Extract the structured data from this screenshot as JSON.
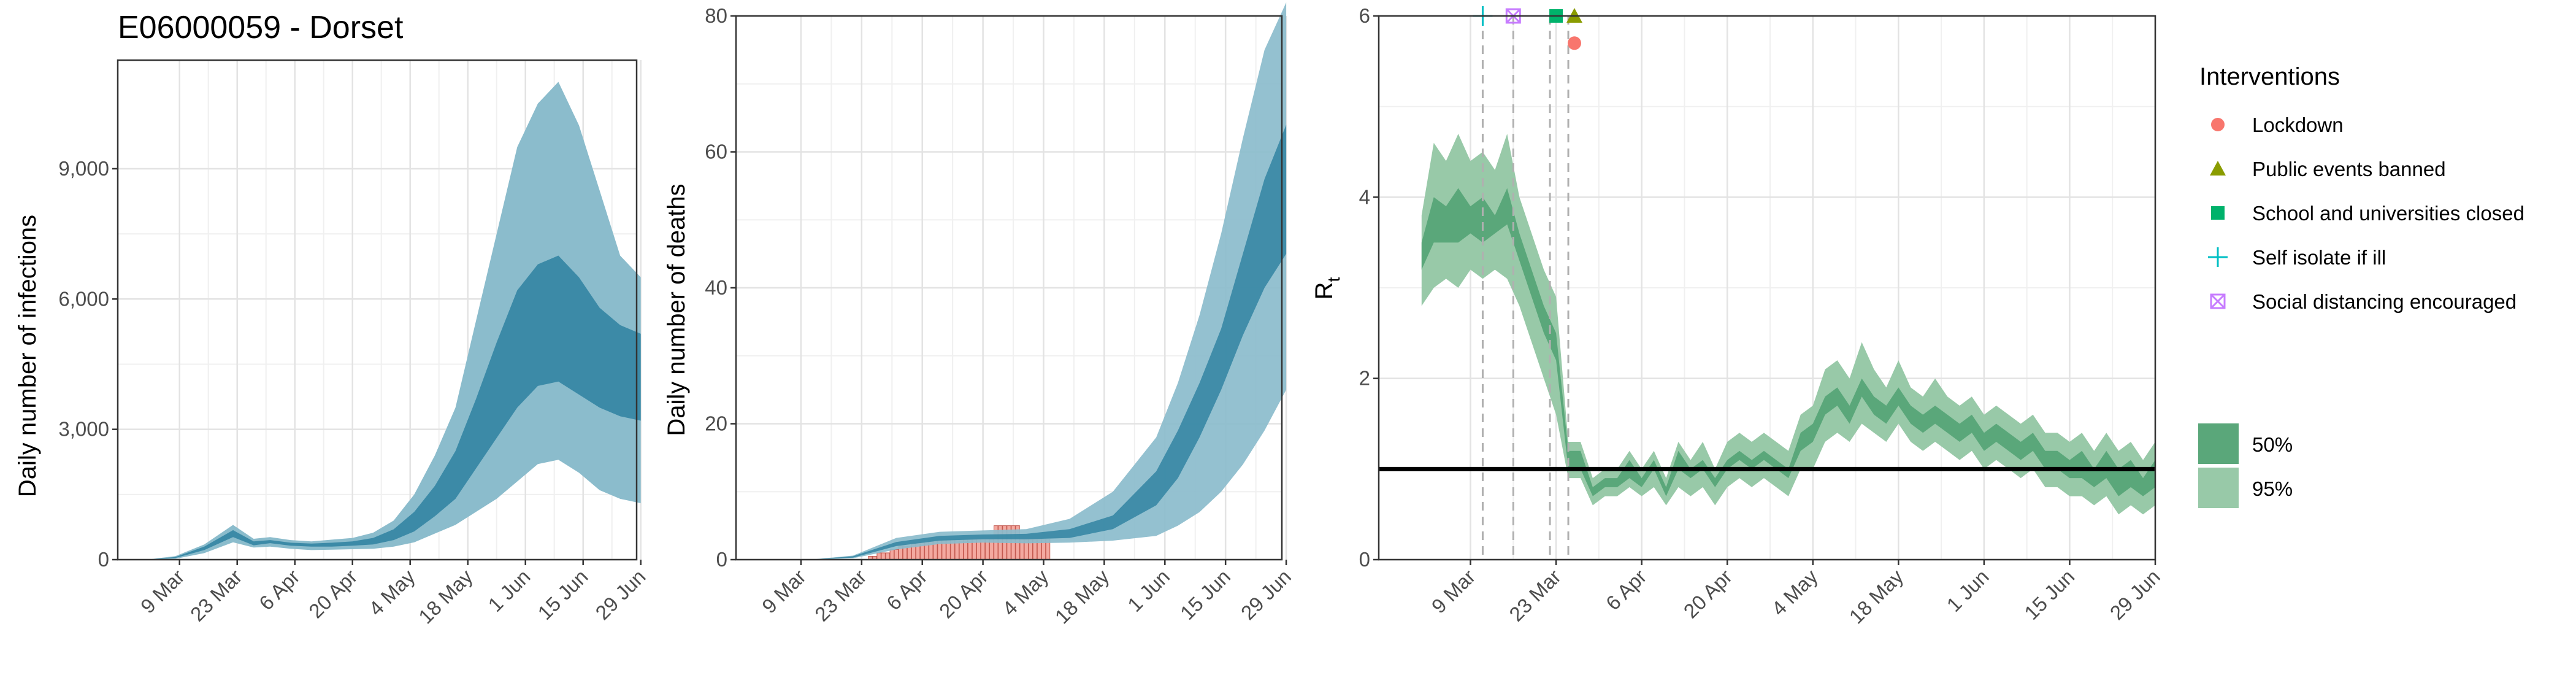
{
  "chart_data": [
    {
      "type": "area",
      "title": "E06000059 - Dorset",
      "ylabel": "Daily number of infections",
      "xlabel": "",
      "ylim": [
        0,
        11500
      ],
      "yticks": [
        0,
        3000,
        6000,
        9000
      ],
      "ytick_labels": [
        "0",
        "3,000",
        "6,000",
        "9,000"
      ],
      "xlim": [
        -7,
        119
      ],
      "xticks": [
        8,
        22,
        36,
        50,
        64,
        78,
        92,
        106,
        120
      ],
      "xtick_labels": [
        "9 Mar",
        "23 Mar",
        "6 Apr",
        "20 Apr",
        "4 May",
        "18 May",
        "1 Jun",
        "15 Jun",
        "29 Jun"
      ],
      "grid": true,
      "colors": {
        "ci95": "#8bbccc",
        "ci50": "#3c8aa7"
      },
      "x": [
        0,
        7,
        14,
        21,
        26,
        30,
        35,
        40,
        45,
        50,
        55,
        60,
        65,
        70,
        75,
        80,
        85,
        90,
        95,
        100,
        105,
        110,
        115,
        120
      ],
      "bands": [
        {
          "name": "",
          "level": 95,
          "lower": [
            0,
            20,
            150,
            400,
            280,
            300,
            250,
            220,
            230,
            240,
            250,
            300,
            400,
            600,
            800,
            1100,
            1400,
            1800,
            2200,
            2300,
            2000,
            1600,
            1400,
            1300
          ],
          "upper": [
            0,
            80,
            350,
            800,
            480,
            520,
            450,
            420,
            460,
            500,
            620,
            900,
            1500,
            2400,
            3500,
            5500,
            7500,
            9500,
            10500,
            11000,
            10000,
            8500,
            7000,
            6500
          ]
        },
        {
          "name": "",
          "level": 50,
          "lower": [
            0,
            40,
            220,
            520,
            330,
            380,
            320,
            300,
            300,
            320,
            350,
            450,
            650,
            1000,
            1400,
            2100,
            2800,
            3500,
            4000,
            4100,
            3800,
            3500,
            3300,
            3200
          ],
          "upper": [
            0,
            60,
            300,
            680,
            420,
            450,
            390,
            370,
            390,
            420,
            500,
            700,
            1100,
            1700,
            2500,
            3700,
            5000,
            6200,
            6800,
            7000,
            6500,
            5800,
            5400,
            5200
          ]
        }
      ]
    },
    {
      "type": "area",
      "ylabel": "Daily number of deaths",
      "xlabel": "",
      "ylim": [
        0,
        80
      ],
      "yticks": [
        0,
        20,
        40,
        60,
        80
      ],
      "ytick_labels": [
        "0",
        "20",
        "40",
        "60",
        "80"
      ],
      "xlim": [
        -7,
        119
      ],
      "xticks": [
        8,
        22,
        36,
        50,
        64,
        78,
        92,
        106,
        120
      ],
      "xtick_labels": [
        "9 Mar",
        "23 Mar",
        "6 Apr",
        "20 Apr",
        "4 May",
        "18 May",
        "1 Jun",
        "15 Jun",
        "29 Jun"
      ],
      "grid": true,
      "colors": {
        "ci95": "#8bbccc",
        "ci50": "#3c8aa7",
        "bars": "#f4a9a0",
        "bar_edge": "#c45a50"
      },
      "x": [
        0,
        10,
        20,
        30,
        40,
        50,
        60,
        70,
        80,
        90,
        95,
        100,
        105,
        110,
        115,
        120
      ],
      "bands": [
        {
          "name": "",
          "level": 95,
          "lower": [
            0,
            0,
            0.2,
            1.5,
            2.3,
            2.5,
            2.4,
            2.5,
            2.8,
            3.5,
            5,
            7,
            10,
            14,
            19,
            25
          ],
          "upper": [
            0,
            0,
            0.6,
            3.2,
            4.1,
            4.3,
            4.5,
            6,
            10,
            18,
            26,
            36,
            48,
            62,
            75,
            82
          ]
        },
        {
          "name": "",
          "level": 50,
          "lower": [
            0,
            0,
            0.3,
            2.0,
            2.8,
            3.0,
            3.0,
            3.2,
            4.5,
            8,
            12,
            18,
            25,
            33,
            40,
            45
          ]
        },
        {
          "name": "",
          "level": 50,
          "upper": [
            0,
            0,
            0.5,
            2.6,
            3.5,
            3.7,
            3.8,
            4.5,
            6.5,
            13,
            19,
            26,
            34,
            45,
            56,
            64
          ]
        }
      ],
      "observed_deaths": {
        "x": [
          24,
          25,
          26,
          27,
          28,
          29,
          30,
          31,
          32,
          33,
          34,
          35,
          36,
          37,
          38,
          39,
          40,
          41,
          42,
          43,
          44,
          45,
          46,
          47,
          48,
          49,
          50,
          51,
          52,
          53,
          54,
          55,
          56,
          57,
          58,
          59,
          60,
          61,
          62,
          63,
          64,
          65
        ],
        "values": [
          0.5,
          0.5,
          1,
          1,
          1,
          1.5,
          1.5,
          2,
          2,
          2,
          2.5,
          2.5,
          2.5,
          3,
          3,
          3,
          3,
          3,
          3,
          3,
          3,
          3,
          3,
          3,
          3,
          3,
          3,
          3,
          3,
          5,
          5,
          5,
          5,
          5,
          5,
          3,
          3,
          3,
          3,
          3,
          3,
          3
        ]
      }
    },
    {
      "type": "line",
      "ylabel": "R",
      "ylabel_subscript": "t",
      "xlabel": "",
      "ylim": [
        0,
        6
      ],
      "yticks": [
        0,
        2,
        4,
        6
      ],
      "ytick_labels": [
        "0",
        "2",
        "4",
        "6"
      ],
      "xlim": [
        -7,
        120
      ],
      "xticks": [
        8,
        22,
        36,
        50,
        64,
        78,
        92,
        106,
        120
      ],
      "xtick_labels": [
        "9 Mar",
        "23 Mar",
        "6 Apr",
        "20 Apr",
        "4 May",
        "18 May",
        "1 Jun",
        "15 Jun",
        "29 Jun"
      ],
      "grid": true,
      "reference_line": 1,
      "colors": {
        "ci95": "#98c9a8",
        "ci50": "#5aa77a",
        "reference": "#000000",
        "vline": "#b0b0b0"
      },
      "x": [
        0,
        2,
        4,
        6,
        8,
        10,
        12,
        14,
        16,
        18,
        20,
        22,
        24,
        26,
        28,
        30,
        32,
        34,
        36,
        38,
        40,
        42,
        44,
        46,
        48,
        50,
        52,
        54,
        56,
        58,
        60,
        62,
        64,
        66,
        68,
        70,
        72,
        74,
        76,
        78,
        80,
        82,
        84,
        86,
        88,
        90,
        92,
        94,
        96,
        98,
        100,
        102,
        104,
        106,
        108,
        110,
        112,
        114,
        116,
        118,
        120
      ],
      "ci95_lower": [
        2.8,
        3.0,
        3.1,
        3.0,
        3.2,
        3.1,
        3.2,
        3.1,
        2.8,
        2.4,
        2.0,
        1.6,
        0.9,
        0.9,
        0.6,
        0.7,
        0.7,
        0.8,
        0.7,
        0.8,
        0.6,
        0.8,
        0.7,
        0.8,
        0.6,
        0.8,
        0.9,
        0.8,
        0.9,
        0.8,
        0.7,
        1.0,
        1.0,
        1.3,
        1.4,
        1.3,
        1.5,
        1.4,
        1.3,
        1.5,
        1.3,
        1.2,
        1.3,
        1.2,
        1.1,
        1.2,
        1.0,
        1.1,
        1.0,
        0.9,
        1.0,
        0.8,
        0.8,
        0.7,
        0.7,
        0.6,
        0.7,
        0.5,
        0.6,
        0.5,
        0.6
      ],
      "ci95_upper": [
        3.8,
        4.6,
        4.4,
        4.7,
        4.4,
        4.5,
        4.3,
        4.7,
        4.0,
        3.6,
        3.2,
        2.9,
        1.3,
        1.3,
        0.9,
        1.0,
        1.0,
        1.2,
        1.0,
        1.2,
        0.9,
        1.3,
        1.1,
        1.3,
        1.0,
        1.3,
        1.4,
        1.3,
        1.4,
        1.3,
        1.2,
        1.6,
        1.7,
        2.1,
        2.2,
        2.0,
        2.4,
        2.1,
        1.9,
        2.2,
        1.9,
        1.8,
        2.0,
        1.8,
        1.7,
        1.8,
        1.6,
        1.7,
        1.6,
        1.5,
        1.6,
        1.4,
        1.4,
        1.3,
        1.4,
        1.2,
        1.4,
        1.2,
        1.3,
        1.1,
        1.3
      ],
      "ci50_lower": [
        3.2,
        3.5,
        3.5,
        3.5,
        3.6,
        3.5,
        3.6,
        3.7,
        3.3,
        2.9,
        2.5,
        2.2,
        1.0,
        1.0,
        0.7,
        0.8,
        0.8,
        0.9,
        0.8,
        1.0,
        0.7,
        1.0,
        0.9,
        1.0,
        0.8,
        1.0,
        1.1,
        1.0,
        1.1,
        1.0,
        0.9,
        1.2,
        1.3,
        1.6,
        1.7,
        1.5,
        1.8,
        1.6,
        1.5,
        1.7,
        1.5,
        1.4,
        1.5,
        1.4,
        1.3,
        1.4,
        1.2,
        1.3,
        1.2,
        1.1,
        1.2,
        1.0,
        1.0,
        0.9,
        0.9,
        0.8,
        0.9,
        0.7,
        0.8,
        0.7,
        0.8
      ],
      "ci50_upper": [
        3.5,
        4.0,
        3.9,
        4.1,
        3.9,
        4.0,
        3.8,
        4.1,
        3.6,
        3.2,
        2.8,
        2.5,
        1.2,
        1.2,
        0.8,
        0.9,
        0.9,
        1.1,
        0.9,
        1.1,
        0.8,
        1.2,
        1.0,
        1.1,
        0.9,
        1.1,
        1.2,
        1.1,
        1.2,
        1.1,
        1.0,
        1.4,
        1.5,
        1.8,
        1.9,
        1.7,
        2.0,
        1.8,
        1.7,
        1.9,
        1.7,
        1.6,
        1.7,
        1.6,
        1.5,
        1.6,
        1.4,
        1.5,
        1.4,
        1.3,
        1.4,
        1.2,
        1.2,
        1.1,
        1.2,
        1.0,
        1.2,
        1.0,
        1.1,
        0.9,
        1.1
      ],
      "interventions": [
        {
          "name": "Self isolate if ill",
          "x": 10,
          "y": 6.0,
          "shape": "plus",
          "color": "#00bfc4"
        },
        {
          "name": "Social distancing encouraged",
          "x": 15,
          "y": 6.0,
          "shape": "boxx",
          "color": "#c77cff"
        },
        {
          "name": "School and universities closed",
          "x": 22,
          "y": 6.0,
          "shape": "square",
          "color": "#00b26b"
        },
        {
          "name": "Public events banned",
          "x": 25,
          "y": 6.0,
          "shape": "triangle",
          "color": "#8a9c00"
        },
        {
          "name": "Lockdown",
          "x": 25,
          "y": 5.7,
          "shape": "circle",
          "color": "#f8766d"
        }
      ],
      "intervention_vlines": [
        10,
        15,
        21,
        24
      ],
      "legend": {
        "title": "Interventions",
        "placement": "right",
        "items": [
          {
            "label": "Lockdown",
            "shape": "circle",
            "color": "#f8766d"
          },
          {
            "label": "Public events banned",
            "shape": "triangle",
            "color": "#8a9c00"
          },
          {
            "label": "School and universities closed",
            "shape": "square",
            "color": "#00b26b"
          },
          {
            "label": "Self isolate if ill",
            "shape": "plus",
            "color": "#00bfc4"
          },
          {
            "label": "Social distancing encouraged",
            "shape": "boxx",
            "color": "#c77cff"
          }
        ],
        "bands": [
          {
            "label": "50%",
            "color": "#5aa77a"
          },
          {
            "label": "95%",
            "color": "#98c9a8"
          }
        ]
      }
    }
  ]
}
